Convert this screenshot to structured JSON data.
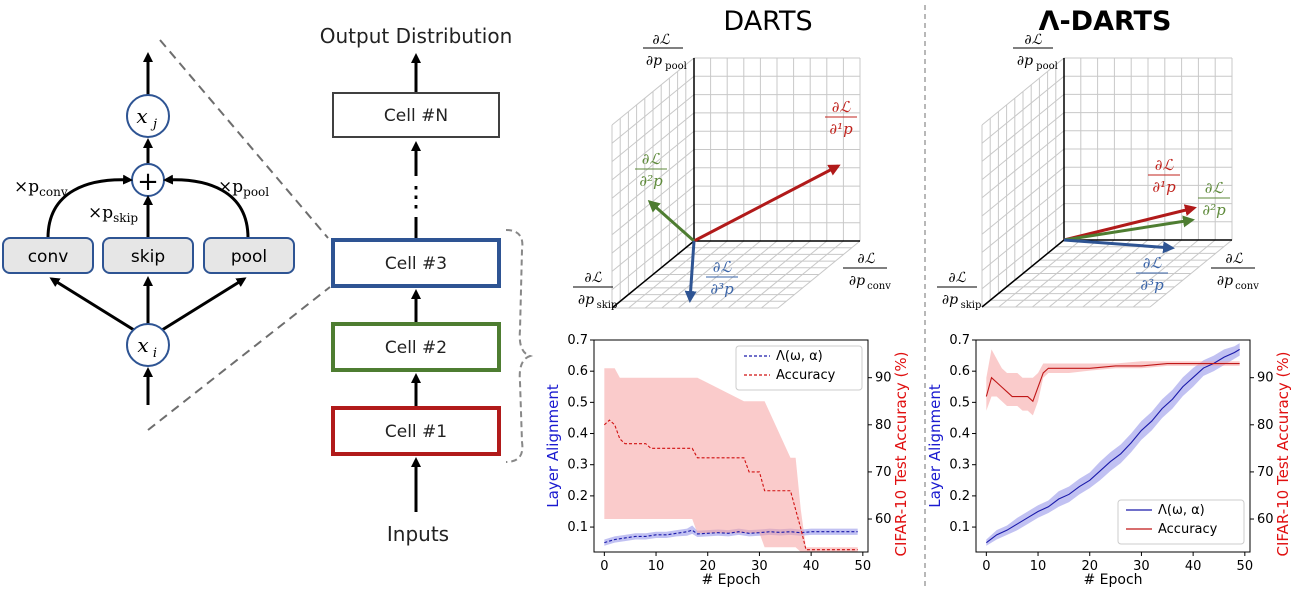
{
  "cell_diagram": {
    "node_top": "x",
    "node_top_sub": "j",
    "node_bottom": "x",
    "node_bottom_sub": "i",
    "sum_symbol": "+",
    "ops": [
      "conv",
      "skip",
      "pool"
    ],
    "weights": [
      {
        "prefix": "×p",
        "sub": "conv"
      },
      {
        "prefix": "×p",
        "sub": "skip"
      },
      {
        "prefix": "×p",
        "sub": "pool"
      }
    ]
  },
  "stack": {
    "output_label": "Output Distribution",
    "input_label": "Inputs",
    "cells": [
      "Cell #N",
      "Cell #3",
      "Cell #2",
      "Cell #1"
    ],
    "ellipsis": "⋮",
    "colors": {
      "cellN": "#404040",
      "cell3": "#2e5493",
      "cell2": "#4e7d31",
      "cell1": "#b11a1a"
    }
  },
  "panels": [
    {
      "title": "DARTS",
      "grad_labels": {
        "p1": "∂¹p",
        "p2": "∂²p",
        "p3": "∂³p",
        "num": "∂ℒ"
      },
      "axis_labels": {
        "pool": "∂p",
        "pool_sub": "pool",
        "skip": "∂p",
        "skip_sub": "skip",
        "conv": "∂p",
        "conv_sub": "conv",
        "num": "∂ℒ"
      },
      "chart_data": {
        "type": "line",
        "xlabel": "# Epoch",
        "ylabel_left": "Layer Alignment",
        "ylabel_right": "CIFAR-10 Test Accuracy (%)",
        "xlim": [
          -2,
          51
        ],
        "ylim_left": [
          0.02,
          0.7
        ],
        "ylim_right": [
          53,
          98
        ],
        "xticks": [
          0,
          10,
          20,
          30,
          40,
          50
        ],
        "yticks_left": [
          0.1,
          0.2,
          0.3,
          0.4,
          0.5,
          0.6,
          0.7
        ],
        "yticks_right": [
          60,
          70,
          80,
          90
        ],
        "legend_position": "top-right",
        "series": [
          {
            "name": "Λ(ω, α)",
            "axis": "left",
            "style": "dashed",
            "color": "#1a1aaa",
            "x": [
              0,
              2,
              4,
              6,
              8,
              10,
              12,
              14,
              16,
              17,
              18,
              20,
              22,
              24,
              26,
              28,
              30,
              32,
              34,
              36,
              38,
              40,
              42,
              44,
              46,
              48,
              49
            ],
            "values": [
              0.05,
              0.06,
              0.065,
              0.07,
              0.07,
              0.075,
              0.075,
              0.08,
              0.085,
              0.09,
              0.078,
              0.08,
              0.082,
              0.08,
              0.085,
              0.08,
              0.082,
              0.085,
              0.083,
              0.085,
              0.082,
              0.085,
              0.085,
              0.085,
              0.085,
              0.085,
              0.085
            ],
            "lower": [
              0.04,
              0.05,
              0.055,
              0.06,
              0.06,
              0.065,
              0.065,
              0.07,
              0.072,
              0.078,
              0.068,
              0.07,
              0.072,
              0.07,
              0.075,
              0.07,
              0.072,
              0.075,
              0.073,
              0.075,
              0.072,
              0.075,
              0.075,
              0.075,
              0.075,
              0.075,
              0.075
            ],
            "upper": [
              0.06,
              0.07,
              0.075,
              0.08,
              0.08,
              0.085,
              0.085,
              0.09,
              0.095,
              0.105,
              0.088,
              0.09,
              0.092,
              0.09,
              0.095,
              0.09,
              0.092,
              0.095,
              0.093,
              0.095,
              0.092,
              0.095,
              0.095,
              0.095,
              0.095,
              0.095,
              0.095
            ]
          },
          {
            "name": "Accuracy",
            "axis": "right",
            "style": "dashed",
            "color": "#d01010",
            "x": [
              0,
              1,
              2,
              3,
              4,
              8,
              9,
              17,
              18,
              27,
              28,
              30,
              31,
              36,
              37,
              38,
              39,
              49
            ],
            "values": [
              80,
              81,
              80,
              77,
              76,
              76,
              75,
              75,
              73,
              73,
              70,
              70,
              66,
              66,
              62,
              58,
              53.5,
              53.5
            ],
            "lower": [
              60,
              60,
              60,
              60,
              60,
              60,
              60,
              60,
              57,
              57,
              57,
              57,
              54,
              54,
              54,
              53,
              53,
              53
            ],
            "upper": [
              92,
              92,
              92,
              90,
              90,
              90,
              90,
              90,
              90,
              85,
              85,
              85,
              85,
              73,
              73,
              62,
              54,
              54
            ]
          }
        ]
      }
    },
    {
      "title": "Λ-DARTS",
      "grad_labels": {
        "p1": "∂¹p",
        "p2": "∂²p",
        "p3": "∂³p",
        "num": "∂ℒ"
      },
      "axis_labels": {
        "pool": "∂p",
        "pool_sub": "pool",
        "skip": "∂p",
        "skip_sub": "skip",
        "conv": "∂p",
        "conv_sub": "conv",
        "num": "∂ℒ"
      },
      "chart_data": {
        "type": "line",
        "xlabel": "# Epoch",
        "ylabel_left": "Layer Alignment",
        "ylabel_right": "CIFAR-10 Test Accuracy (%)",
        "xlim": [
          -2,
          51
        ],
        "ylim_left": [
          0.02,
          0.7
        ],
        "ylim_right": [
          53,
          98
        ],
        "xticks": [
          0,
          10,
          20,
          30,
          40,
          50
        ],
        "yticks_left": [
          0.1,
          0.2,
          0.3,
          0.4,
          0.5,
          0.6,
          0.7
        ],
        "yticks_right": [
          60,
          70,
          80,
          90
        ],
        "legend_position": "lower-right",
        "series": [
          {
            "name": "Λ(ω, α)",
            "axis": "left",
            "style": "solid",
            "color": "#1a1aaa",
            "x": [
              0,
              2,
              4,
              6,
              8,
              10,
              12,
              14,
              16,
              18,
              20,
              22,
              24,
              26,
              28,
              30,
              32,
              34,
              36,
              38,
              40,
              42,
              44,
              46,
              48,
              49
            ],
            "values": [
              0.05,
              0.075,
              0.09,
              0.11,
              0.13,
              0.15,
              0.165,
              0.19,
              0.205,
              0.23,
              0.25,
              0.28,
              0.31,
              0.335,
              0.37,
              0.41,
              0.44,
              0.48,
              0.51,
              0.55,
              0.58,
              0.61,
              0.625,
              0.645,
              0.66,
              0.67
            ],
            "lower": [
              0.04,
              0.06,
              0.075,
              0.09,
              0.11,
              0.13,
              0.145,
              0.165,
              0.18,
              0.205,
              0.225,
              0.25,
              0.28,
              0.305,
              0.34,
              0.38,
              0.41,
              0.45,
              0.48,
              0.52,
              0.55,
              0.585,
              0.6,
              0.62,
              0.64,
              0.65
            ],
            "upper": [
              0.06,
              0.09,
              0.105,
              0.13,
              0.15,
              0.17,
              0.185,
              0.215,
              0.23,
              0.255,
              0.275,
              0.31,
              0.34,
              0.365,
              0.4,
              0.44,
              0.47,
              0.51,
              0.54,
              0.58,
              0.61,
              0.635,
              0.65,
              0.67,
              0.68,
              0.69
            ]
          },
          {
            "name": "Accuracy",
            "axis": "right",
            "style": "solid",
            "color": "#c01818",
            "x": [
              0,
              1,
              2,
              3,
              4,
              5,
              6,
              7,
              8,
              9,
              10,
              11,
              12,
              14,
              16,
              20,
              25,
              30,
              35,
              40,
              45,
              49
            ],
            "values": [
              86,
              90,
              89,
              88,
              87,
              86,
              86,
              86,
              86,
              85,
              88,
              91,
              92,
              92,
              92,
              92,
              92.5,
              92.5,
              93,
              93,
              93,
              93
            ],
            "lower": [
              83,
              86,
              86,
              85,
              84,
              84,
              84,
              83,
              83,
              82,
              85,
              90,
              91,
              91,
              91,
              91.5,
              92,
              92,
              92.5,
              92.5,
              92.5,
              92.5
            ],
            "upper": [
              90,
              96,
              94,
              92,
              91,
              91,
              91,
              90,
              90,
              90,
              91,
              93,
              93,
              93,
              93,
              93,
              93,
              93.5,
              93.5,
              93.5,
              93.5,
              93.5
            ]
          }
        ]
      }
    }
  ]
}
